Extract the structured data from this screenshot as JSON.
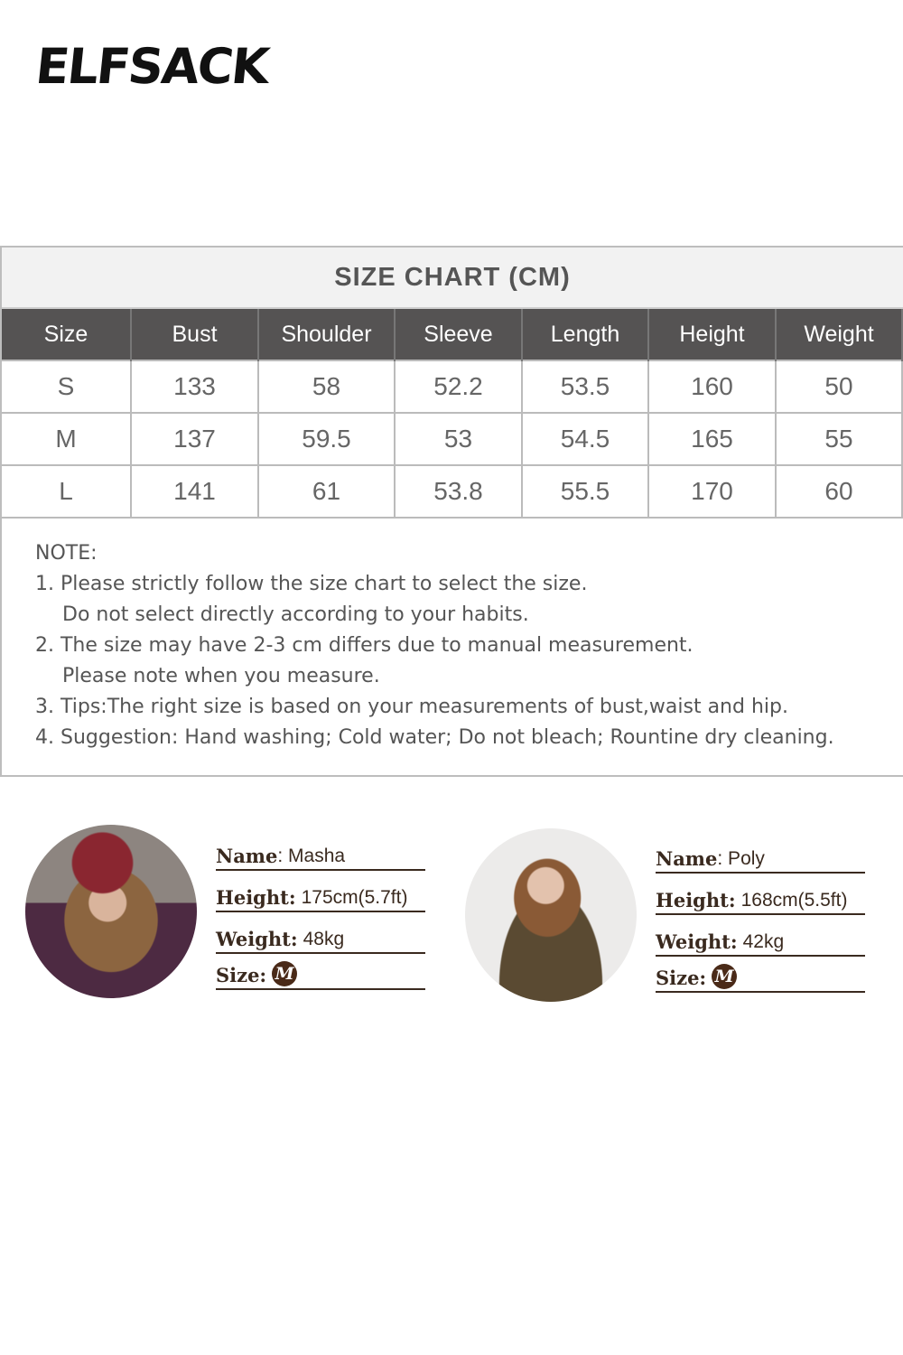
{
  "brand": {
    "logo_text": "ELFSACK"
  },
  "size_chart": {
    "title": "SIZE CHART (CM)",
    "columns": [
      "Size",
      "Bust",
      "Shoulder",
      "Sleeve",
      "Length",
      "Height",
      "Weight"
    ],
    "rows": [
      [
        "S",
        "133",
        "58",
        "52.2",
        "53.5",
        "160",
        "50"
      ],
      [
        "M",
        "137",
        "59.5",
        "53",
        "54.5",
        "165",
        "55"
      ],
      [
        "L",
        "141",
        "61",
        "53.8",
        "55.5",
        "170",
        "60"
      ]
    ]
  },
  "note": {
    "heading": "NOTE:",
    "lines": [
      "1. Please strictly follow the size chart to select the size.",
      "Do not select directly according to your habits.",
      "2. The size may have 2-3 cm differs due to manual measurement.",
      "Please note when you measure.",
      "3. Tips:The right size is based on your measurements of bust,waist and hip.",
      "4. Suggestion: Hand washing; Cold water; Do not bleach; Rountine dry cleaning."
    ]
  },
  "models": [
    {
      "name_label": "Name",
      "name": ": Masha",
      "height_label": "Height:",
      "height": "175cm(5.7ft)",
      "weight_label": "Weight:",
      "weight": "48kg",
      "size_label": "Size:",
      "size": "M"
    },
    {
      "name_label": "Name",
      "name": ": Poly",
      "height_label": "Height:",
      "height": "168cm(5.5ft)",
      "weight_label": "Weight:",
      "weight": "42kg",
      "size_label": "Size:",
      "size": "M"
    }
  ],
  "colors": {
    "header_bg": "#555353",
    "title_bg": "#f2f2f2",
    "model_text": "#3a2a1f",
    "size_badge": "#4a2a18"
  }
}
